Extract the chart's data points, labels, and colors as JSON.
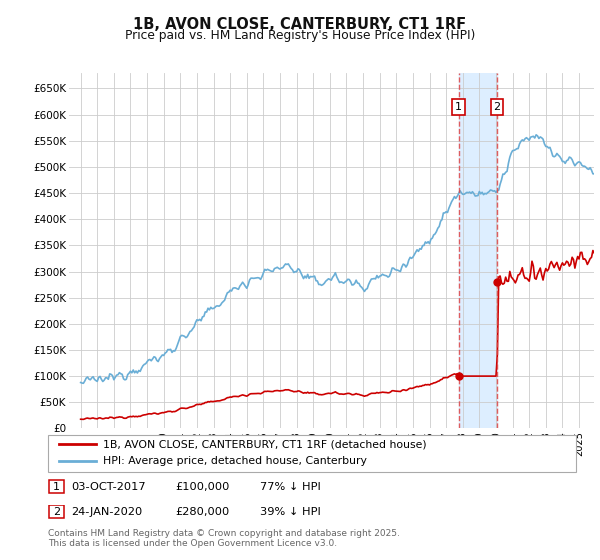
{
  "title": "1B, AVON CLOSE, CANTERBURY, CT1 1RF",
  "subtitle": "Price paid vs. HM Land Registry's House Price Index (HPI)",
  "ylim": [
    0,
    680000
  ],
  "yticks": [
    0,
    50000,
    100000,
    150000,
    200000,
    250000,
    300000,
    350000,
    400000,
    450000,
    500000,
    550000,
    600000,
    650000
  ],
  "ytick_labels": [
    "£0",
    "£50K",
    "£100K",
    "£150K",
    "£200K",
    "£250K",
    "£300K",
    "£350K",
    "£400K",
    "£450K",
    "£500K",
    "£550K",
    "£600K",
    "£650K"
  ],
  "hpi_color": "#6aaed6",
  "price_color": "#cc0000",
  "vline_color": "#dd4444",
  "sale1_x": 2017.75,
  "sale1_price": 100000,
  "sale1_date_str": "03-OCT-2017",
  "sale1_pct": "77% ↓ HPI",
  "sale2_x": 2020.07,
  "sale2_price": 280000,
  "sale2_date_str": "24-JAN-2020",
  "sale2_pct": "39% ↓ HPI",
  "legend_line1": "1B, AVON CLOSE, CANTERBURY, CT1 1RF (detached house)",
  "legend_line2": "HPI: Average price, detached house, Canterbury",
  "footnote1": "Contains HM Land Registry data © Crown copyright and database right 2025.",
  "footnote2": "This data is licensed under the Open Government Licence v3.0.",
  "background_color": "#ffffff",
  "grid_color": "#cccccc",
  "shade_color": "#ddeeff"
}
